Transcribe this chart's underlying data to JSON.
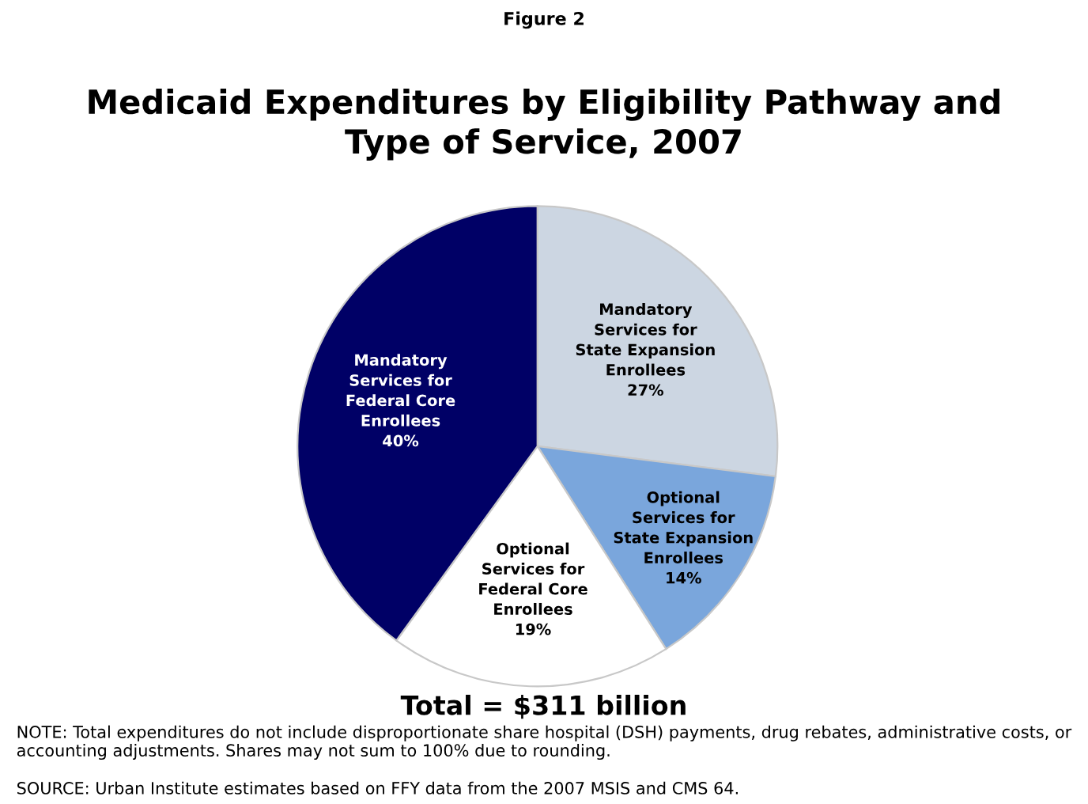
{
  "chart_data": {
    "type": "pie",
    "title": "Medicaid Expenditures by Eligibility Pathway and\nType of Service, 2007",
    "categories": [
      "Mandatory\nServices for\nState Expansion\nEnrollees",
      "Optional\nServices for\nState Expansion\nEnrollees",
      "Optional\nServices for\nFederal Core\nEnrollees",
      "Mandatory\nServices for\nFederal Core\nEnrollees"
    ],
    "values": [
      27,
      14,
      19,
      40
    ],
    "value_labels": [
      "27%",
      "14%",
      "19%",
      "40%"
    ],
    "colors": [
      "#ccd6e2",
      "#7aa6dc",
      "#ffffff",
      "#000066"
    ],
    "annotations": [
      "Figure 2",
      "Total = $311 billion",
      "NOTE: Total expenditures do not include disproportionate share hospital (DSH) payments, drug rebates, administrative costs, or accounting adjustments. Shares may not sum to 100% due to rounding.",
      "SOURCE: Urban Institute estimates based on FFY data from the 2007 MSIS and CMS 64."
    ]
  }
}
